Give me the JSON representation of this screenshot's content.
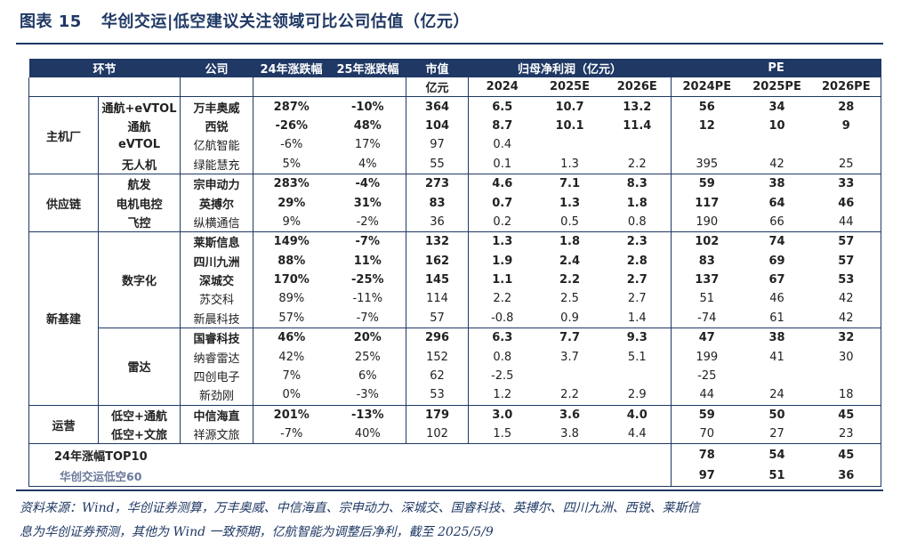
{
  "title": {
    "label": "图表 15",
    "text": "华创交运|低空建议关注领域可比公司估值（亿元）"
  },
  "header": {
    "segment": "环节",
    "company": "公司",
    "chg24": "24年涨跌幅",
    "chg25": "25年涨跌幅",
    "mcap": "市值",
    "mcap_unit": "亿元",
    "np": "归母净利润（亿元）",
    "pe": "PE",
    "y1": "2024",
    "y2": "2025E",
    "y3": "2026E",
    "pe1": "2024PE",
    "pe2": "2025PE",
    "pe3": "2026PE"
  },
  "groups": {
    "g1": "主机厂",
    "g2": "供应链",
    "g3": "新基建",
    "g4": "运营"
  },
  "subgroups": {
    "digital": "数字化",
    "radar": "雷达"
  },
  "rows": [
    {
      "seg": "通航+eVTOL",
      "co": "万丰奥威",
      "c24": "287%",
      "c25": "-10%",
      "mc": "364",
      "n1": "6.5",
      "n2": "10.7",
      "n3": "13.2",
      "p1": "56",
      "p2": "34",
      "p3": "28",
      "bold": true
    },
    {
      "seg": "通航",
      "co": "西锐",
      "c24": "-26%",
      "c25": "48%",
      "mc": "104",
      "n1": "8.7",
      "n2": "10.1",
      "n3": "11.4",
      "p1": "12",
      "p2": "10",
      "p3": "9",
      "bold": true
    },
    {
      "seg": "eVTOL",
      "co": "亿航智能",
      "c24": "-6%",
      "c25": "17%",
      "mc": "97",
      "n1": "0.4",
      "n2": "",
      "n3": "",
      "p1": "",
      "p2": "",
      "p3": "",
      "bold": false
    },
    {
      "seg": "无人机",
      "co": "绿能慧充",
      "c24": "5%",
      "c25": "4%",
      "mc": "55",
      "n1": "0.1",
      "n2": "1.3",
      "n3": "2.2",
      "p1": "395",
      "p2": "42",
      "p3": "25",
      "bold": false
    },
    {
      "seg": "航发",
      "co": "宗申动力",
      "c24": "283%",
      "c25": "-4%",
      "mc": "273",
      "n1": "4.6",
      "n2": "7.1",
      "n3": "8.3",
      "p1": "59",
      "p2": "38",
      "p3": "33",
      "bold": true
    },
    {
      "seg": "电机电控",
      "co": "英搏尔",
      "c24": "29%",
      "c25": "31%",
      "mc": "83",
      "n1": "0.7",
      "n2": "1.3",
      "n3": "1.8",
      "p1": "117",
      "p2": "64",
      "p3": "46",
      "bold": true
    },
    {
      "seg": "飞控",
      "co": "纵横通信",
      "c24": "9%",
      "c25": "-2%",
      "mc": "36",
      "n1": "0.2",
      "n2": "0.5",
      "n3": "0.8",
      "p1": "190",
      "p2": "66",
      "p3": "44",
      "bold": false
    },
    {
      "seg": "",
      "co": "莱斯信息",
      "c24": "149%",
      "c25": "-7%",
      "mc": "132",
      "n1": "1.3",
      "n2": "1.8",
      "n3": "2.3",
      "p1": "102",
      "p2": "74",
      "p3": "57",
      "bold": true
    },
    {
      "seg": "",
      "co": "四川九洲",
      "c24": "88%",
      "c25": "11%",
      "mc": "162",
      "n1": "1.9",
      "n2": "2.4",
      "n3": "2.8",
      "p1": "83",
      "p2": "69",
      "p3": "57",
      "bold": true
    },
    {
      "seg": "",
      "co": "深城交",
      "c24": "170%",
      "c25": "-25%",
      "mc": "145",
      "n1": "1.1",
      "n2": "2.2",
      "n3": "2.7",
      "p1": "137",
      "p2": "67",
      "p3": "53",
      "bold": true
    },
    {
      "seg": "",
      "co": "苏交科",
      "c24": "89%",
      "c25": "-11%",
      "mc": "114",
      "n1": "2.2",
      "n2": "2.5",
      "n3": "2.7",
      "p1": "51",
      "p2": "46",
      "p3": "42",
      "bold": false
    },
    {
      "seg": "",
      "co": "新晨科技",
      "c24": "57%",
      "c25": "-7%",
      "mc": "57",
      "n1": "-0.8",
      "n2": "0.9",
      "n3": "1.4",
      "p1": "-74",
      "p2": "61",
      "p3": "42",
      "bold": false
    },
    {
      "seg": "",
      "co": "国睿科技",
      "c24": "46%",
      "c25": "20%",
      "mc": "296",
      "n1": "6.3",
      "n2": "7.7",
      "n3": "9.3",
      "p1": "47",
      "p2": "38",
      "p3": "32",
      "bold": true
    },
    {
      "seg": "",
      "co": "纳睿雷达",
      "c24": "42%",
      "c25": "25%",
      "mc": "152",
      "n1": "0.8",
      "n2": "3.7",
      "n3": "5.1",
      "p1": "199",
      "p2": "41",
      "p3": "30",
      "bold": false
    },
    {
      "seg": "",
      "co": "四创电子",
      "c24": "7%",
      "c25": "6%",
      "mc": "62",
      "n1": "-2.5",
      "n2": "",
      "n3": "",
      "p1": "-25",
      "p2": "",
      "p3": "",
      "bold": false
    },
    {
      "seg": "",
      "co": "新劲刚",
      "c24": "0%",
      "c25": "-3%",
      "mc": "53",
      "n1": "1.2",
      "n2": "2.2",
      "n3": "2.9",
      "p1": "44",
      "p2": "24",
      "p3": "18",
      "bold": false
    },
    {
      "seg": "低空+通航",
      "co": "中信海直",
      "c24": "201%",
      "c25": "-13%",
      "mc": "179",
      "n1": "3.0",
      "n2": "3.6",
      "n3": "4.0",
      "p1": "59",
      "p2": "50",
      "p3": "45",
      "bold": true
    },
    {
      "seg": "低空+文旅",
      "co": "祥源文旅",
      "c24": "-7%",
      "c25": "40%",
      "mc": "102",
      "n1": "1.5",
      "n2": "3.8",
      "n3": "4.4",
      "p1": "70",
      "p2": "27",
      "p3": "23",
      "bold": false
    }
  ],
  "summary": [
    {
      "name": "24年涨幅TOP10",
      "p1": "78",
      "p2": "54",
      "p3": "45"
    },
    {
      "name": "华创交运低空60",
      "p1": "97",
      "p2": "51",
      "p3": "36"
    }
  ],
  "note": {
    "line1": "资料来源：Wind，华创证券测算，万丰奥威、中信海直、宗申动力、深城交、国睿科技、英搏尔、四川九洲、西锐、莱斯信",
    "line2": "息为华创证券预测，其他为 Wind 一致预期，亿航智能为调整后净利，截至 2025/5/9"
  }
}
